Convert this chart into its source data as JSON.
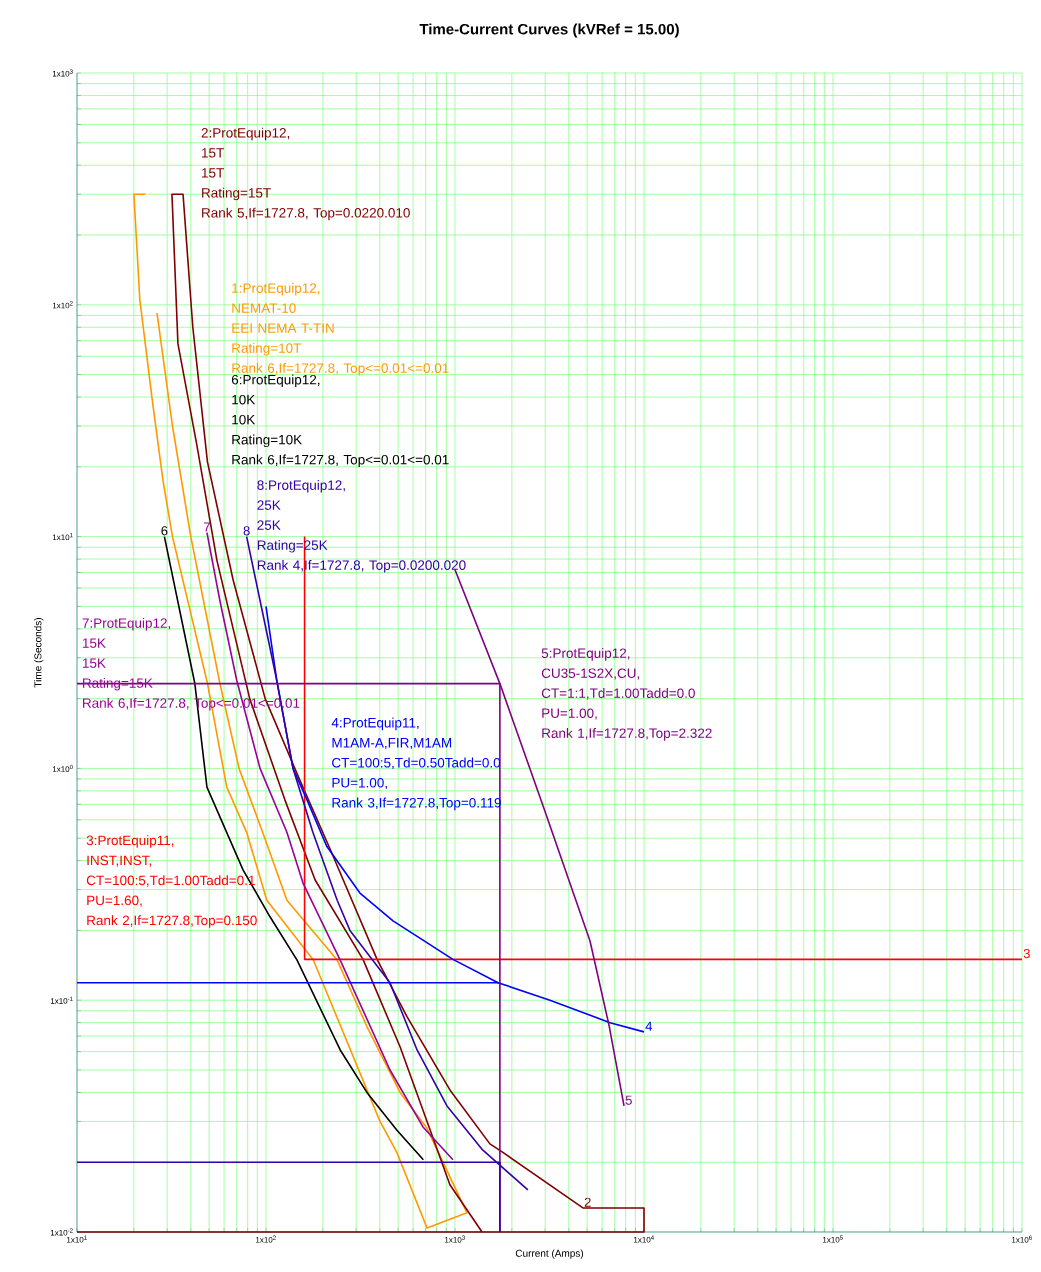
{
  "chart_data": {
    "type": "line",
    "title": "Time-Current Curves (kVRef = 15.00)",
    "xlabel": "Current (Amps)",
    "ylabel": "Time (Seconds)",
    "log": "xy",
    "grid": true,
    "xlim": [
      10,
      1000000
    ],
    "ylim": [
      0.01,
      1000
    ],
    "xticks": [
      {
        "value": 10,
        "label": "1x10$^{1}$"
      },
      {
        "value": 20,
        "label": null
      },
      {
        "value": 30,
        "label": null
      },
      {
        "value": 40,
        "label": null
      },
      {
        "value": 50,
        "label": null
      },
      {
        "value": 60,
        "label": null
      },
      {
        "value": 70,
        "label": null
      },
      {
        "value": 80,
        "label": null
      },
      {
        "value": 90,
        "label": null
      },
      {
        "value": 100,
        "label": "1x10$^{2}$"
      },
      {
        "value": 200,
        "label": null
      },
      {
        "value": 300,
        "label": null
      },
      {
        "value": 400,
        "label": null
      },
      {
        "value": 500,
        "label": null
      },
      {
        "value": 600,
        "label": null
      },
      {
        "value": 700,
        "label": null
      },
      {
        "value": 800,
        "label": null
      },
      {
        "value": 900,
        "label": null
      },
      {
        "value": 1000,
        "label": "1x10$^{3}$"
      },
      {
        "value": 2000,
        "label": null
      },
      {
        "value": 3000,
        "label": null
      },
      {
        "value": 4000,
        "label": null
      },
      {
        "value": 5000,
        "label": null
      },
      {
        "value": 6000,
        "label": null
      },
      {
        "value": 7000,
        "label": null
      },
      {
        "value": 8000,
        "label": null
      },
      {
        "value": 9000,
        "label": null
      },
      {
        "value": 10000,
        "label": "1x10$^{4}$"
      },
      {
        "value": 20000,
        "label": null
      },
      {
        "value": 30000,
        "label": null
      },
      {
        "value": 40000,
        "label": null
      },
      {
        "value": 50000,
        "label": null
      },
      {
        "value": 60000,
        "label": null
      },
      {
        "value": 70000,
        "label": null
      },
      {
        "value": 80000,
        "label": null
      },
      {
        "value": 90000,
        "label": null
      },
      {
        "value": 100000,
        "label": "1x10$^{5}$"
      },
      {
        "value": 200000,
        "label": null
      },
      {
        "value": 300000,
        "label": null
      },
      {
        "value": 400000,
        "label": null
      },
      {
        "value": 500000,
        "label": null
      },
      {
        "value": 600000,
        "label": null
      },
      {
        "value": 700000,
        "label": null
      },
      {
        "value": 800000,
        "label": null
      },
      {
        "value": 900000,
        "label": null
      },
      {
        "value": 1000000,
        "label": "1x10$^{6}$"
      }
    ],
    "yticks": [
      {
        "value": 0.01,
        "label": "1x10$^{-2}$"
      },
      {
        "value": 0.02,
        "label": null
      },
      {
        "value": 0.03,
        "label": null
      },
      {
        "value": 0.04,
        "label": null
      },
      {
        "value": 0.05,
        "label": null
      },
      {
        "value": 0.06,
        "label": null
      },
      {
        "value": 0.07,
        "label": null
      },
      {
        "value": 0.08,
        "label": null
      },
      {
        "value": 0.09,
        "label": null
      },
      {
        "value": 0.1,
        "label": "1x10$^{-1}$"
      },
      {
        "value": 0.2,
        "label": null
      },
      {
        "value": 0.3,
        "label": null
      },
      {
        "value": 0.4,
        "label": null
      },
      {
        "value": 0.5,
        "label": null
      },
      {
        "value": 0.6,
        "label": null
      },
      {
        "value": 0.7,
        "label": null
      },
      {
        "value": 0.8,
        "label": null
      },
      {
        "value": 0.9,
        "label": null
      },
      {
        "value": 1,
        "label": "1x10$^{0}$"
      },
      {
        "value": 2,
        "label": null
      },
      {
        "value": 3,
        "label": null
      },
      {
        "value": 4,
        "label": null
      },
      {
        "value": 5,
        "label": null
      },
      {
        "value": 6,
        "label": null
      },
      {
        "value": 7,
        "label": null
      },
      {
        "value": 8,
        "label": null
      },
      {
        "value": 9,
        "label": null
      },
      {
        "value": 10,
        "label": "1x10$^{1}$"
      },
      {
        "value": 20,
        "label": null
      },
      {
        "value": 30,
        "label": null
      },
      {
        "value": 40,
        "label": null
      },
      {
        "value": 50,
        "label": null
      },
      {
        "value": 60,
        "label": null
      },
      {
        "value": 70,
        "label": null
      },
      {
        "value": 80,
        "label": null
      },
      {
        "value": 90,
        "label": null
      },
      {
        "value": 100,
        "label": "1x10$^{2}$"
      },
      {
        "value": 200,
        "label": null
      },
      {
        "value": 300,
        "label": null
      },
      {
        "value": 400,
        "label": null
      },
      {
        "value": 500,
        "label": null
      },
      {
        "value": 600,
        "label": null
      },
      {
        "value": 700,
        "label": null
      },
      {
        "value": 800,
        "label": null
      },
      {
        "value": 900,
        "label": null
      },
      {
        "value": 1000,
        "label": "1x10$^{3}$"
      }
    ],
    "series": [
      {
        "name": "1:ProtEquip12,\nNEMAT-10\nEEI NEMA T-TIN\nRating=10T\nRank 6,If=1727.8, Top<=0.01<=0.01",
        "color": "#ff9900",
        "x": [
          23,
          20,
          21.5,
          25,
          28.5,
          32,
          49,
          62,
          79,
          101,
          178,
          401,
          493,
          711,
          1157,
          711,
          512,
          342,
          238,
          129,
          96,
          72,
          57,
          40,
          32,
          26.5
        ],
        "values": [
          300,
          300,
          105,
          39,
          17.5,
          10,
          2.33,
          0.83,
          0.53,
          0.27,
          0.149,
          0.03,
          0.022,
          0.0104,
          0.0121,
          0.028,
          0.04,
          0.077,
          0.149,
          0.27,
          0.53,
          1.0,
          2.33,
          10,
          30,
          92
        ]
      },
      {
        "name": "2:ProtEquip12,\n15T\n15T\nRating=15T\nRank 5,If=1727.8, Top=0.0220.010",
        "color": "#800000",
        "x": [
          10,
          10000,
          10000,
          4750,
          1800,
          1530,
          940,
          557,
          387,
          218,
          151,
          99,
          67,
          49,
          41,
          36.4,
          31.8,
          34.2,
          43,
          55,
          82,
          126,
          182,
          326,
          512,
          940,
          1390
        ],
        "values": [
          0.01,
          0.01,
          0.0127,
          0.0127,
          0.022,
          0.024,
          0.041,
          0.085,
          0.15,
          0.45,
          0.89,
          2.0,
          6.5,
          21,
          80,
          300,
          300,
          68,
          25,
          7.9,
          2.0,
          0.73,
          0.33,
          0.15,
          0.063,
          0.016,
          0.01
        ]
      },
      {
        "name": "3:ProtEquip11,\nINST,INST,\nCT=100:5,Td=1.00Tadd=0.1\nPU=1.60,\nRank 2,If=1727.8,Top=0.150",
        "color": "#ff0000",
        "x": [
          160,
          160,
          1000000
        ],
        "values": [
          10,
          0.15,
          0.15
        ]
      },
      {
        "name": "4:ProtEquip11,\nM1AM-A,FIR,M1AM\nCT=100:5,Td=0.50Tadd=0.0\nPU=1.00,\nRank 3,If=1727.8,Top=0.119",
        "color": "#0000ff",
        "x": [
          100,
          114,
          139,
          165,
          210,
          314,
          470,
          975,
          1690,
          3180,
          6610,
          10000
        ],
        "values": [
          5,
          2.4,
          1.0,
          0.73,
          0.46,
          0.29,
          0.22,
          0.15,
          0.119,
          0.1,
          0.08,
          0.073
        ]
      },
      {
        "name": "5:ProtEquip12,\nCU35-1S2X,CU,\nCT=1:1,Td=1.00Tadd=0.0\nPU=1.00,\nRank 1,If=1727.8,Top=2.322",
        "color": "#800080",
        "x": [
          1000,
          1727.8,
          2960,
          5180,
          6530,
          7840
        ],
        "values": [
          7.2,
          2.322,
          0.67,
          0.18,
          0.078,
          0.035
        ]
      },
      {
        "name": "6:ProtEquip12,\n10K\n10K\nRating=10K\nRank 6,If=1727.8, Top<=0.01<=0.01",
        "color": "#000000",
        "x": [
          29,
          42,
          48.7,
          75.6,
          105,
          146,
          247,
          342,
          493,
          680
        ],
        "values": [
          10,
          2.33,
          0.83,
          0.365,
          0.229,
          0.149,
          0.061,
          0.04,
          0.0275,
          0.0205
        ]
      },
      {
        "name": "7:ProtEquip12,\n15K\n15K\nRating=15K\nRank 6,If=1727.8, Top<=0.01<=0.01",
        "color": "#990099",
        "x": [
          48.7,
          57,
          70,
          93,
          129,
          157,
          247,
          453,
          677,
          975
        ],
        "values": [
          10.4,
          5.3,
          2.4,
          1.0,
          0.53,
          0.32,
          0.149,
          0.05,
          0.0284,
          0.0205
        ]
      },
      {
        "name": "8:ProtEquip12,\n25K\n25K\nRating=25K\nRank 4,If=1727.8, Top=0.0200.020",
        "color": "#3300aa",
        "x": [
          79,
          93,
          114,
          139,
          177,
          238,
          278,
          453,
          630,
          907,
          1400,
          2430
        ],
        "values": [
          10,
          5.3,
          2.4,
          1.0,
          0.53,
          0.27,
          0.2,
          0.119,
          0.061,
          0.035,
          0.0226,
          0.0152
        ]
      },
      {
        "color": "#0000ff",
        "x": [
          10,
          1727.8
        ],
        "values": [
          0.119,
          0.119
        ]
      },
      {
        "color": "#800080",
        "x": [
          10,
          1727.8,
          1727.8
        ],
        "values": [
          2.322,
          2.322,
          0.01
        ]
      },
      {
        "color": "#3300aa",
        "x": [
          10,
          1727.8,
          1727.8
        ],
        "values": [
          0.02,
          0.02,
          0.01
        ]
      }
    ],
    "annotations": [
      {
        "text": "6",
        "x": 29,
        "y": 10
      },
      {
        "text": "7",
        "x": 48.7,
        "y": 10.4
      },
      {
        "text": "8",
        "x": 79,
        "y": 10
      },
      {
        "text": "4",
        "x": 10000,
        "y": 0.073
      },
      {
        "text": "5",
        "x": 7840,
        "y": 0.035
      },
      {
        "text": "2",
        "x": 4750,
        "y": 0.0127
      },
      {
        "text": "3",
        "x": 1000000,
        "y": 0.15
      }
    ]
  }
}
